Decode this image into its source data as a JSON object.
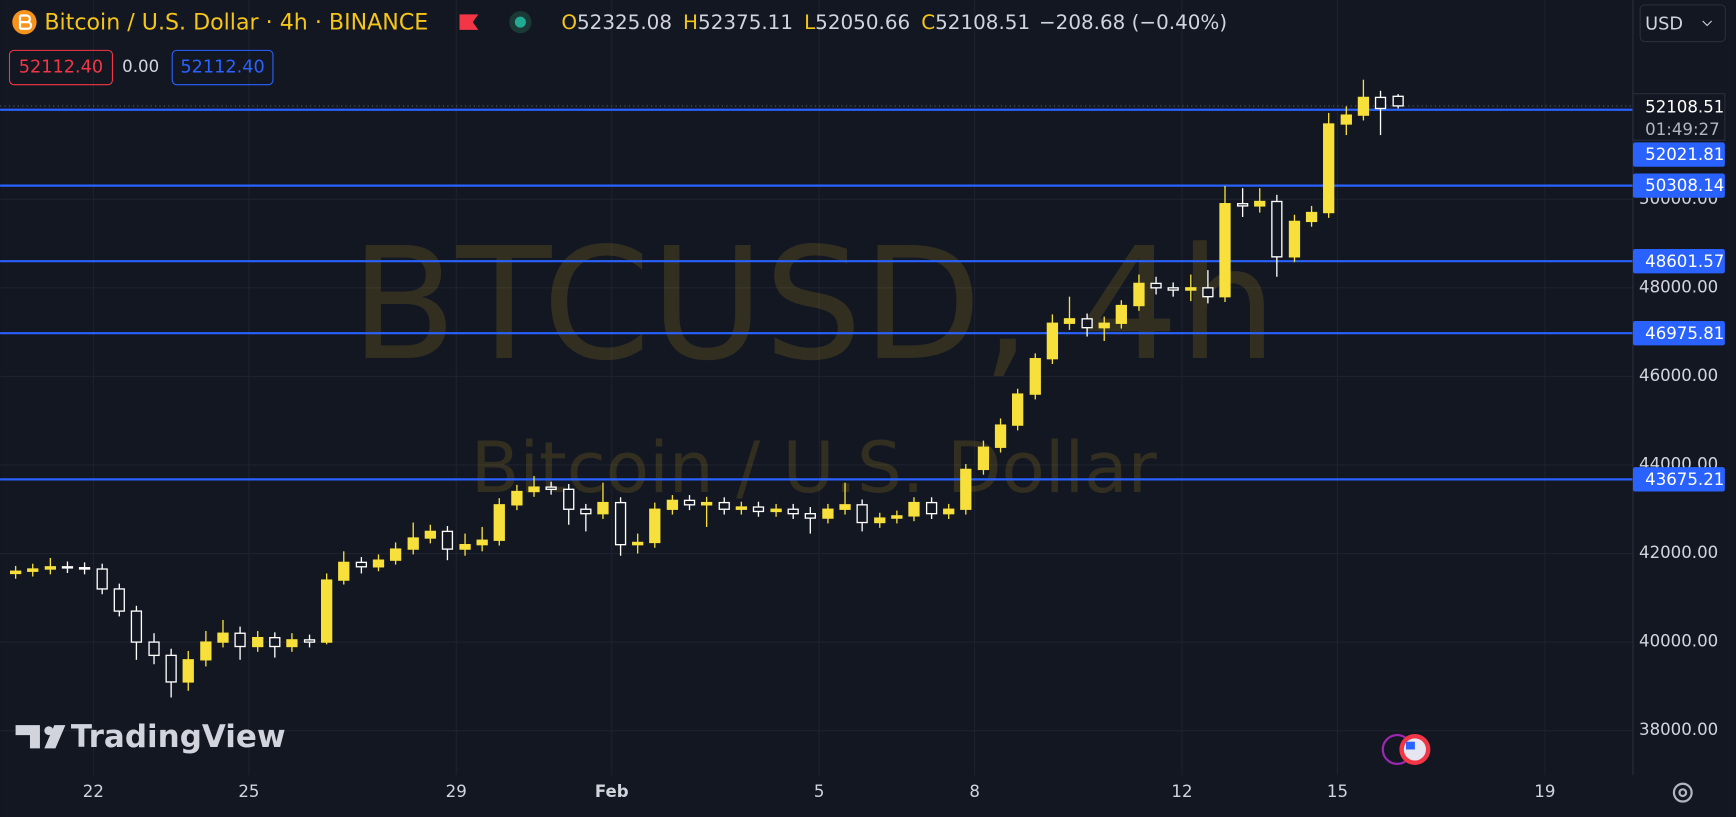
{
  "header": {
    "title": "Bitcoin / U.S. Dollar · 4h · BINANCE",
    "ohlc_labels": [
      "O",
      "H",
      "L",
      "C"
    ],
    "change": "−208.68 (−0.40%)",
    "currency": "USD",
    "sell": "52112.40",
    "spread": "0.00",
    "buy": "52112.40",
    "countdown": "01:49:27",
    "logo": "TradingView"
  },
  "chart_data": {
    "type": "candlestick",
    "watermark": [
      "BTCUSD, 4h",
      "Bitcoin / U.S. Dollar"
    ],
    "up_color": "#f7e03b",
    "down_color": "#ffffff",
    "line_color": "#2962ff",
    "xlim": [
      20.2,
      51.7
    ],
    "ylim": [
      37000,
      54500
    ],
    "grid": true,
    "xticks": [
      22,
      25,
      29,
      {
        "value": 32,
        "label": "Feb"
      },
      {
        "value": 36,
        "label": "5"
      },
      {
        "value": 39,
        "label": "8"
      },
      {
        "value": 43,
        "label": "12"
      },
      {
        "value": 46,
        "label": "15"
      },
      {
        "value": 50,
        "label": "19"
      }
    ],
    "yticks": [
      {
        "value": 38000,
        "label": "38000.00"
      },
      {
        "value": 40000,
        "label": "40000.00"
      },
      {
        "value": 42000,
        "label": "42000.00"
      },
      {
        "value": 44000,
        "label": "44000.00"
      },
      {
        "value": 46000,
        "label": "46000.00"
      },
      {
        "value": 48000,
        "label": "48000.00"
      },
      {
        "value": 50000,
        "label": "50000.00"
      }
    ],
    "hlines": [
      52021.81,
      50308.14,
      48601.57,
      46975.81,
      43675.21
    ],
    "x": [
      20.5,
      20.83,
      21.17,
      21.5,
      21.83,
      22.17,
      22.5,
      22.83,
      23.17,
      23.5,
      23.83,
      24.17,
      24.5,
      24.83,
      25.17,
      25.5,
      25.83,
      26.17,
      26.5,
      26.83,
      27.17,
      27.5,
      27.83,
      28.17,
      28.5,
      28.83,
      29.17,
      29.5,
      29.83,
      30.17,
      30.5,
      30.83,
      31.17,
      31.5,
      31.83,
      32.17,
      32.5,
      32.83,
      33.17,
      33.5,
      33.83,
      34.17,
      34.5,
      34.83,
      35.17,
      35.5,
      35.83,
      36.17,
      36.5,
      36.83,
      37.17,
      37.5,
      37.83,
      38.17,
      38.5,
      38.83,
      39.17,
      39.5,
      39.83,
      40.17,
      40.5,
      40.83,
      41.17,
      41.5,
      41.83,
      42.17,
      42.5,
      42.83,
      43.17,
      43.5,
      43.83,
      44.17,
      44.5,
      44.83,
      45.17,
      45.5,
      45.83,
      46.17,
      46.5,
      46.83,
      47.17
    ],
    "candles": [
      [
        41550,
        41720,
        41430,
        41600
      ],
      [
        41600,
        41770,
        41480,
        41650
      ],
      [
        41650,
        41900,
        41530,
        41700
      ],
      [
        41700,
        41820,
        41560,
        41680
      ],
      [
        41680,
        41800,
        41530,
        41650
      ],
      [
        41650,
        41770,
        41080,
        41200
      ],
      [
        41200,
        41320,
        40580,
        40700
      ],
      [
        40700,
        40820,
        39600,
        40000
      ],
      [
        40000,
        40200,
        39500,
        39700
      ],
      [
        39700,
        39850,
        38750,
        39100
      ],
      [
        39100,
        39800,
        38900,
        39600
      ],
      [
        39600,
        40250,
        39450,
        40000
      ],
      [
        40000,
        40500,
        39880,
        40200
      ],
      [
        40200,
        40350,
        39600,
        39900
      ],
      [
        39900,
        40250,
        39780,
        40100
      ],
      [
        40100,
        40220,
        39650,
        39900
      ],
      [
        39900,
        40200,
        39780,
        40050
      ],
      [
        40050,
        40170,
        39880,
        40000
      ],
      [
        40000,
        41550,
        39950,
        41400
      ],
      [
        41400,
        42050,
        41300,
        41800
      ],
      [
        41800,
        41920,
        41550,
        41700
      ],
      [
        41700,
        41980,
        41600,
        41850
      ],
      [
        41850,
        42250,
        41750,
        42100
      ],
      [
        42100,
        42700,
        41980,
        42350
      ],
      [
        42350,
        42650,
        42230,
        42500
      ],
      [
        42500,
        42620,
        41850,
        42100
      ],
      [
        42100,
        42450,
        41950,
        42200
      ],
      [
        42200,
        42600,
        42050,
        42300
      ],
      [
        42300,
        43250,
        42180,
        43100
      ],
      [
        43100,
        43550,
        42980,
        43400
      ],
      [
        43400,
        43750,
        43280,
        43500
      ],
      [
        43500,
        43620,
        43330,
        43450
      ],
      [
        43450,
        43570,
        42650,
        43000
      ],
      [
        43000,
        43120,
        42500,
        42900
      ],
      [
        42900,
        43600,
        42780,
        43150
      ],
      [
        43150,
        43270,
        41950,
        42200
      ],
      [
        42200,
        42450,
        42000,
        42250
      ],
      [
        42250,
        43150,
        42130,
        43000
      ],
      [
        43000,
        43320,
        42880,
        43200
      ],
      [
        43200,
        43320,
        42980,
        43100
      ],
      [
        43100,
        43280,
        42600,
        43150
      ],
      [
        43150,
        43270,
        42880,
        43000
      ],
      [
        43000,
        43170,
        42880,
        43050
      ],
      [
        43050,
        43170,
        42830,
        42950
      ],
      [
        42950,
        43120,
        42830,
        43000
      ],
      [
        43000,
        43120,
        42780,
        42900
      ],
      [
        42900,
        43050,
        42450,
        42800
      ],
      [
        42800,
        43120,
        42680,
        43000
      ],
      [
        43000,
        43600,
        42880,
        43100
      ],
      [
        43100,
        43220,
        42500,
        42700
      ],
      [
        42700,
        42920,
        42580,
        42800
      ],
      [
        42800,
        42970,
        42680,
        42850
      ],
      [
        42850,
        43270,
        42730,
        43150
      ],
      [
        43150,
        43270,
        42780,
        42900
      ],
      [
        42900,
        43120,
        42780,
        43000
      ],
      [
        43000,
        44020,
        42880,
        43900
      ],
      [
        43900,
        44550,
        43780,
        44400
      ],
      [
        44400,
        45050,
        44280,
        44900
      ],
      [
        44900,
        45720,
        44780,
        45600
      ],
      [
        45600,
        46520,
        45480,
        46400
      ],
      [
        46400,
        47400,
        46280,
        47200
      ],
      [
        47200,
        47800,
        47050,
        47300
      ],
      [
        47300,
        47420,
        46900,
        47100
      ],
      [
        47100,
        47350,
        46800,
        47200
      ],
      [
        47200,
        47720,
        47080,
        47600
      ],
      [
        47600,
        48300,
        47480,
        48100
      ],
      [
        48100,
        48250,
        47850,
        48000
      ],
      [
        48000,
        48120,
        47800,
        47950
      ],
      [
        47950,
        48300,
        47700,
        48000
      ],
      [
        48000,
        48400,
        47650,
        47800
      ],
      [
        47800,
        50300,
        47680,
        49900
      ],
      [
        49900,
        50250,
        49600,
        49850
      ],
      [
        49850,
        50250,
        49700,
        49950
      ],
      [
        49950,
        50100,
        48250,
        48700
      ],
      [
        48700,
        49650,
        48580,
        49500
      ],
      [
        49500,
        49850,
        49380,
        49700
      ],
      [
        49700,
        51950,
        49580,
        51700
      ],
      [
        51700,
        52100,
        51450,
        51900
      ],
      [
        51900,
        52700,
        51780,
        52300
      ],
      [
        52300,
        52450,
        51450,
        52050
      ],
      [
        52325.08,
        52375.11,
        52050.66,
        52108.51
      ]
    ]
  }
}
